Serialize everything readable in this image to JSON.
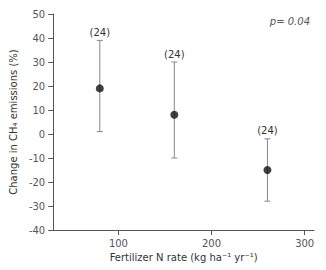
{
  "chart_data": {
    "type": "scatter",
    "x": [
      80,
      160,
      260
    ],
    "values": [
      19,
      8,
      -15
    ],
    "yerr_lower": [
      18,
      18,
      13
    ],
    "yerr_upper": [
      20,
      22,
      13
    ],
    "labels": [
      "(24)",
      "(24)",
      "(24)"
    ],
    "xlabel": "Fertilizer N rate (kg ha⁻¹ yr⁻¹)",
    "ylabel": "Change in CH₄ emissions (%)",
    "annotation": "p= 0.04",
    "xlim": [
      30,
      310
    ],
    "ylim": [
      -40,
      50
    ],
    "xticks": [
      100,
      200,
      300
    ],
    "yticks": [
      -40,
      -30,
      -20,
      -10,
      0,
      10,
      20,
      30,
      40,
      50
    ],
    "color": "#111111",
    "grid": false
  }
}
